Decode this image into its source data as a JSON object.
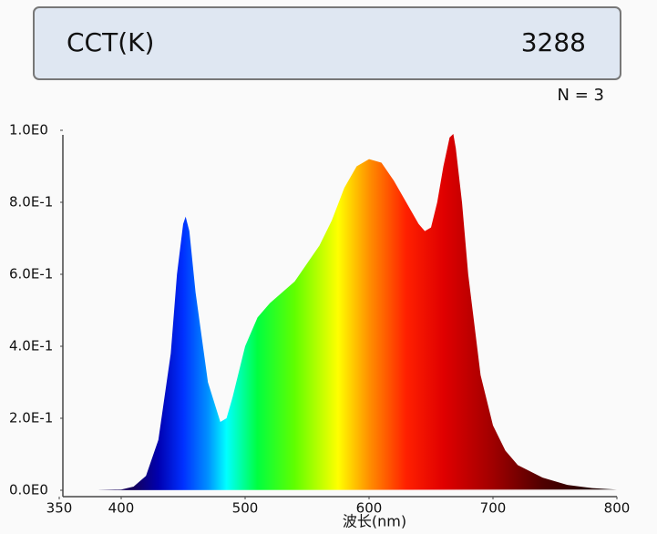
{
  "header": {
    "label": "CCT(K)",
    "value": "3288",
    "note": "N = 3"
  },
  "chart_data": {
    "type": "area",
    "x_label": "波长(nm)",
    "x": [
      350,
      380,
      400,
      410,
      420,
      430,
      440,
      445,
      450,
      452,
      455,
      460,
      470,
      480,
      485,
      490,
      500,
      510,
      520,
      530,
      540,
      550,
      560,
      570,
      580,
      590,
      600,
      610,
      620,
      630,
      640,
      645,
      650,
      655,
      660,
      665,
      668,
      670,
      675,
      680,
      690,
      700,
      710,
      720,
      740,
      760,
      780,
      800
    ],
    "values": [
      0,
      0,
      0.002,
      0.01,
      0.04,
      0.14,
      0.38,
      0.6,
      0.74,
      0.76,
      0.72,
      0.55,
      0.3,
      0.19,
      0.2,
      0.26,
      0.4,
      0.48,
      0.52,
      0.55,
      0.58,
      0.63,
      0.68,
      0.75,
      0.84,
      0.9,
      0.92,
      0.91,
      0.86,
      0.8,
      0.74,
      0.72,
      0.73,
      0.8,
      0.9,
      0.98,
      0.99,
      0.95,
      0.8,
      0.6,
      0.32,
      0.18,
      0.11,
      0.07,
      0.035,
      0.015,
      0.006,
      0.002
    ],
    "xlim": [
      350,
      800
    ],
    "xticks": [
      350,
      400,
      500,
      600,
      700,
      800
    ],
    "ylim": [
      0,
      1
    ],
    "yticks": [
      {
        "value": 0,
        "label": "0.0E0"
      },
      {
        "value": 0.2,
        "label": "2.0E-1"
      },
      {
        "value": 0.4,
        "label": "4.0E-1"
      },
      {
        "value": 0.6,
        "label": "6.0E-1"
      },
      {
        "value": 0.8,
        "label": "8.0E-1"
      },
      {
        "value": 1,
        "label": "1.0E0"
      }
    ]
  }
}
